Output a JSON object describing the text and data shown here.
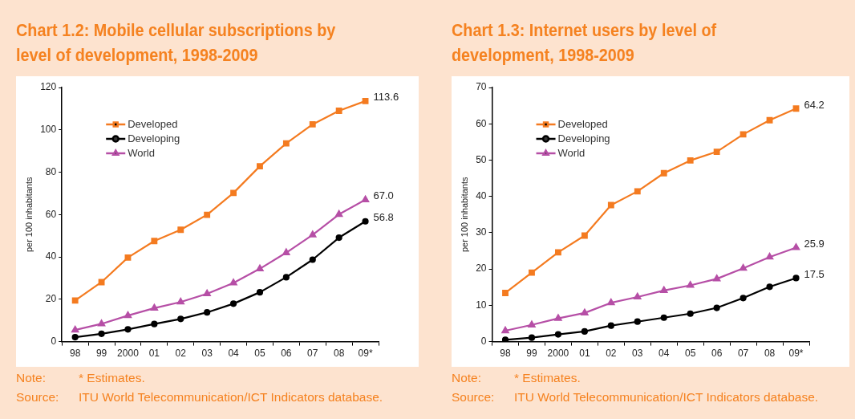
{
  "chart_data": [
    {
      "type": "line",
      "title": "Chart 1.2: Mobile cellular subscriptions by level of development, 1998-2009",
      "ylabel": "per 100 inhabitants",
      "categories": [
        "98",
        "99",
        "2000",
        "01",
        "02",
        "03",
        "04",
        "05",
        "06",
        "07",
        "08",
        "09*"
      ],
      "series": [
        {
          "name": "Developed",
          "color": "#f47b20",
          "marker": "square",
          "values": [
            19.4,
            28.1,
            39.7,
            47.5,
            52.8,
            59.9,
            70.2,
            82.8,
            93.6,
            102.6,
            109.0,
            113.6
          ],
          "value_labels": [
            null,
            null,
            null,
            null,
            null,
            null,
            null,
            null,
            null,
            null,
            null,
            "113.6"
          ]
        },
        {
          "name": "Developing",
          "color": "#000000",
          "marker": "circle",
          "values": [
            2.1,
            3.7,
            5.8,
            8.3,
            10.7,
            13.8,
            17.9,
            23.3,
            30.4,
            38.7,
            49.1,
            56.8
          ],
          "value_labels": [
            null,
            null,
            null,
            null,
            null,
            null,
            null,
            null,
            null,
            null,
            null,
            "56.8"
          ]
        },
        {
          "name": "World",
          "color": "#b64fa6",
          "marker": "triangle",
          "values": [
            5.5,
            8.4,
            12.3,
            15.8,
            18.7,
            22.6,
            27.7,
            34.4,
            42.0,
            50.4,
            60.1,
            67.0
          ],
          "value_labels": [
            null,
            null,
            null,
            null,
            null,
            null,
            null,
            null,
            null,
            null,
            null,
            "67.0"
          ]
        }
      ],
      "ylim": [
        0,
        120
      ],
      "yticks": [
        0,
        20,
        40,
        60,
        80,
        100,
        120
      ],
      "grid": false,
      "legend": "top left",
      "line_style": "solid",
      "annotations": [
        "Note:",
        "* Estimates.",
        "Source:",
        "ITU World Telecommunication/ICT Indicators database."
      ]
    },
    {
      "type": "line",
      "title": "Chart 1.3: Internet users by level of development, 1998-2009",
      "ylabel": "per 100 inhabitants",
      "categories": [
        "98",
        "99",
        "2000",
        "01",
        "02",
        "03",
        "04",
        "05",
        "06",
        "07",
        "08",
        "09*"
      ],
      "series": [
        {
          "name": "Developed",
          "color": "#f47b20",
          "marker": "square",
          "values": [
            13.4,
            19.0,
            24.6,
            29.2,
            37.6,
            41.4,
            46.4,
            49.9,
            52.3,
            57.1,
            61.0,
            64.2
          ],
          "value_labels": [
            null,
            null,
            null,
            null,
            null,
            null,
            null,
            null,
            null,
            null,
            null,
            "64.2"
          ]
        },
        {
          "name": "Developing",
          "color": "#000000",
          "marker": "circle",
          "values": [
            0.5,
            1.1,
            2.0,
            2.8,
            4.4,
            5.5,
            6.6,
            7.7,
            9.3,
            12.0,
            15.1,
            17.5
          ],
          "value_labels": [
            null,
            null,
            null,
            null,
            null,
            null,
            null,
            null,
            null,
            null,
            null,
            "17.5"
          ]
        },
        {
          "name": "World",
          "color": "#b64fa6",
          "marker": "triangle",
          "values": [
            3.0,
            4.6,
            6.4,
            7.9,
            10.7,
            12.3,
            14.1,
            15.5,
            17.3,
            20.2,
            23.3,
            25.9
          ],
          "value_labels": [
            null,
            null,
            null,
            null,
            null,
            null,
            null,
            null,
            null,
            null,
            null,
            "25.9"
          ]
        }
      ],
      "ylim": [
        0,
        70
      ],
      "yticks": [
        0,
        10,
        20,
        30,
        40,
        50,
        60,
        70
      ],
      "grid": false,
      "legend": "top left",
      "line_style": "solid",
      "annotations": [
        "Note:",
        "* Estimates.",
        "Source:",
        "ITU World Telecommunication/ICT Indicators database."
      ]
    }
  ]
}
